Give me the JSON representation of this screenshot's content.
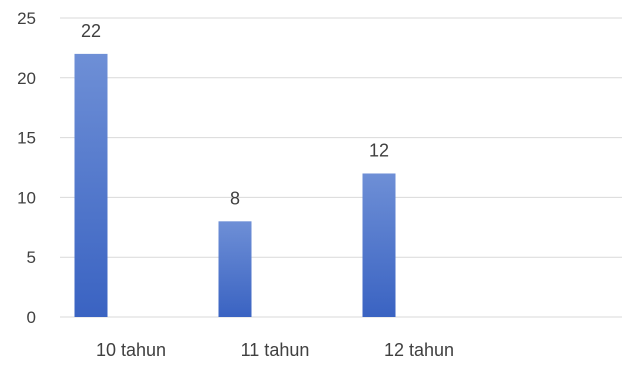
{
  "chart_data": {
    "type": "bar",
    "categories": [
      "10 tahun",
      "11 tahun",
      "12 tahun"
    ],
    "series": [
      {
        "values": [
          22,
          8,
          12
        ]
      }
    ],
    "ylim": [
      0,
      25
    ],
    "yticks": [
      0,
      5,
      10,
      15,
      20,
      25
    ],
    "grid": true,
    "legend": "none",
    "colors": {
      "bar_top": "#6e8fd6",
      "bar_bottom": "#3a63c2",
      "grid": "#d9d9d9",
      "text": "#404040"
    }
  }
}
